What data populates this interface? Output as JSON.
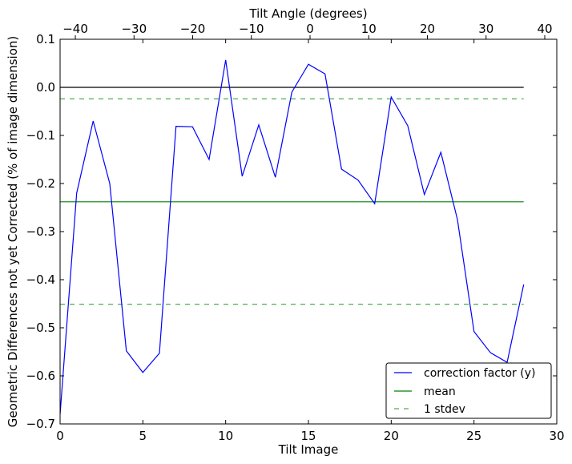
{
  "chart_data": {
    "type": "line",
    "xlabel": "Tilt Image",
    "ylabel": "Geometric Differences not yet Corrected (% of image dimension)",
    "top_xlabel": "Tilt Angle (degrees)",
    "xlim": [
      0,
      30
    ],
    "ylim": [
      -0.7,
      0.1
    ],
    "top_xlim": [
      -42.6,
      42.05
    ],
    "xticks": [
      0,
      5,
      10,
      15,
      20,
      25,
      30
    ],
    "yticks": [
      0.1,
      0.0,
      -0.1,
      -0.2,
      -0.3,
      -0.4,
      -0.5,
      -0.6,
      -0.7
    ],
    "ytick_labels": [
      "0.1",
      "0.0",
      "−0.1",
      "−0.2",
      "−0.3",
      "−0.4",
      "−0.5",
      "−0.6",
      "−0.7"
    ],
    "top_xticks": [
      -40,
      -30,
      -20,
      -10,
      0,
      10,
      20,
      30,
      40
    ],
    "top_xtick_labels": [
      "−40",
      "−30",
      "−20",
      "−10",
      "0",
      "10",
      "20",
      "30",
      "40"
    ],
    "grid": false,
    "legend_position": "bottom-right",
    "series": [
      {
        "name": "correction factor (y)",
        "color": "#0000ff",
        "style": "solid",
        "x": [
          0,
          1,
          2,
          3,
          4,
          5,
          6,
          7,
          8,
          9,
          10,
          11,
          12,
          13,
          14,
          15,
          16,
          17,
          18,
          19,
          20,
          21,
          22,
          23,
          24,
          25,
          26,
          27,
          28
        ],
        "y": [
          -0.68,
          -0.22,
          -0.07,
          -0.2,
          -0.548,
          -0.593,
          -0.553,
          -0.081,
          -0.082,
          -0.15,
          0.057,
          -0.185,
          -0.078,
          -0.187,
          -0.01,
          0.048,
          0.028,
          -0.17,
          -0.193,
          -0.242,
          -0.02,
          -0.08,
          -0.223,
          -0.135,
          -0.275,
          -0.508,
          -0.552,
          -0.572,
          -0.41
        ]
      },
      {
        "name": "mean",
        "color": "#008000",
        "style": "solid",
        "x": [
          0,
          28
        ],
        "y": [
          -0.238,
          -0.238
        ]
      },
      {
        "name": "1 stdev",
        "color": "#4daf4a",
        "style": "dashed",
        "x": [
          0,
          28
        ],
        "y": [
          -0.024,
          -0.024
        ]
      },
      {
        "name": "1 stdev (lower)",
        "color": "#4daf4a",
        "style": "dashed",
        "x": [
          0,
          28
        ],
        "y": [
          -0.451,
          -0.451
        ],
        "in_legend": false
      },
      {
        "name": "zero",
        "color": "#000000",
        "style": "solid",
        "x": [
          0,
          28
        ],
        "y": [
          0,
          0
        ],
        "in_legend": false
      }
    ],
    "legend": [
      "correction factor (y)",
      "mean",
      "1 stdev"
    ]
  }
}
